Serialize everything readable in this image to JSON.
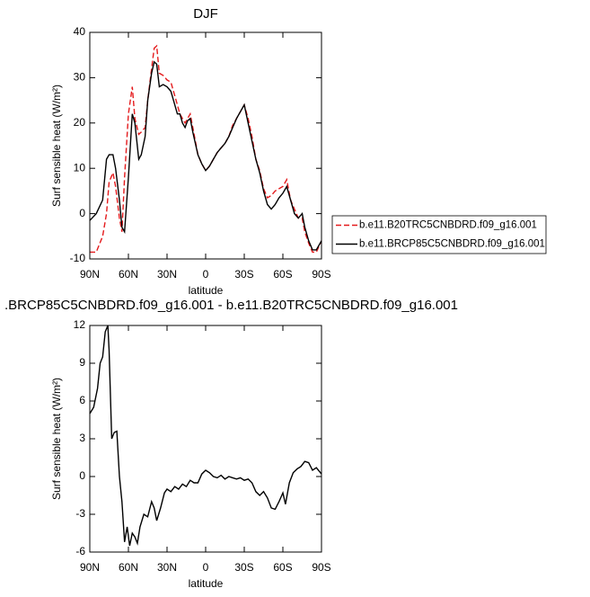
{
  "chart_data": [
    {
      "type": "line",
      "title": "DJF",
      "xlabel": "latitude",
      "ylabel": "Surf sensible heat (W/m²)",
      "x": [
        90,
        85,
        80,
        77,
        75,
        72,
        70,
        67,
        65,
        63,
        60,
        57,
        55,
        52,
        50,
        47,
        45,
        42,
        40,
        38,
        36,
        33,
        30,
        27,
        25,
        22,
        20,
        18,
        16,
        14,
        12,
        10,
        6,
        3,
        0,
        -3,
        -6,
        -9,
        -12,
        -15,
        -18,
        -21,
        -24,
        -27,
        -30,
        -33,
        -36,
        -39,
        -42,
        -45,
        -48,
        -51,
        -54,
        -57,
        -60,
        -63,
        -66,
        -69,
        -72,
        -75,
        -77,
        -80,
        -83,
        -86,
        -90
      ],
      "series": [
        {
          "name": "b.e11.B20TRC5CNBDRD.f09_g16.001",
          "color": "#e41a1c",
          "line_style": "dashed",
          "values": [
            -8.5,
            -8.5,
            -5,
            0,
            7,
            9,
            6,
            -1,
            -4,
            8,
            22,
            28,
            21,
            17.5,
            18,
            19,
            25,
            32,
            36.5,
            37,
            31,
            30.5,
            29.5,
            29,
            27,
            24,
            22,
            21,
            20,
            21,
            22,
            19,
            13,
            11,
            9.5,
            10.5,
            12,
            13.5,
            14.5,
            15.5,
            17,
            19.5,
            21,
            22.5,
            24,
            21,
            17,
            12,
            9.5,
            5.5,
            3.5,
            4,
            5,
            5.5,
            6,
            7.5,
            3,
            1,
            -1,
            -1,
            -4,
            -6.5,
            -8.5,
            -8.5,
            -6
          ]
        },
        {
          "name": "b.e11.BRCP85C5CNBDRD.f09_g16.001",
          "color": "#000000",
          "line_style": "solid",
          "values": [
            -1.5,
            0,
            3,
            12,
            13,
            13,
            10,
            3,
            -3,
            -4,
            8,
            22,
            20,
            12,
            13,
            17,
            25,
            31,
            33.5,
            33,
            28,
            28.5,
            28,
            27,
            25,
            22,
            22,
            20,
            19,
            20.5,
            21,
            18,
            13,
            11,
            9.5,
            10.5,
            12,
            13.5,
            14.5,
            15.5,
            17,
            19,
            21,
            22.5,
            24,
            20,
            16,
            12,
            9,
            5,
            2,
            1,
            2,
            3.5,
            4.5,
            6,
            3,
            0,
            -1,
            0,
            -3,
            -6,
            -8,
            -8,
            -6
          ]
        }
      ],
      "xlim": [
        90,
        -90
      ],
      "xticks": [
        {
          "value": 90,
          "label": "90N"
        },
        {
          "value": 60,
          "label": "60N"
        },
        {
          "value": 30,
          "label": "30N"
        },
        0,
        {
          "value": -30,
          "label": "30S"
        },
        {
          "value": -60,
          "label": "60S"
        },
        {
          "value": -90,
          "label": "90S"
        }
      ],
      "ylim": [
        -10,
        40
      ],
      "yticks": [
        -10,
        0,
        10,
        20,
        30,
        40
      ],
      "legend": "right"
    },
    {
      "type": "line",
      "title": ".BRCP85C5CNBDRD.f09_g16.001 - b.e11.B20TRC5CNBDRD.f09_g16.001",
      "xlabel": "latitude",
      "ylabel": "Surf sensible heat (W/m²)",
      "x": [
        90,
        87,
        84,
        82,
        80,
        78,
        76,
        75,
        73,
        71,
        69,
        67,
        65,
        63,
        61,
        59,
        57,
        55,
        53,
        51,
        48,
        45,
        42,
        40,
        38,
        35,
        32,
        30,
        27,
        24,
        21,
        18,
        15,
        12,
        9,
        6,
        3,
        0,
        -3,
        -6,
        -9,
        -12,
        -15,
        -18,
        -21,
        -24,
        -27,
        -30,
        -33,
        -36,
        -39,
        -42,
        -45,
        -48,
        -51,
        -54,
        -57,
        -60,
        -62,
        -65,
        -68,
        -71,
        -74,
        -77,
        -80,
        -83,
        -86,
        -90
      ],
      "series": [
        {
          "color": "#000000",
          "line_style": "solid",
          "values": [
            5,
            5.5,
            7,
            9,
            9.5,
            11.5,
            12,
            10,
            3,
            3.5,
            3.6,
            0,
            -2,
            -5.2,
            -4,
            -5.5,
            -4.5,
            -4.8,
            -5.3,
            -4,
            -3,
            -3.2,
            -2,
            -2.5,
            -3.5,
            -2.5,
            -1.3,
            -1,
            -1.2,
            -0.8,
            -1,
            -0.6,
            -0.8,
            -0.3,
            -0.5,
            -0.5,
            0.2,
            0.5,
            0.3,
            0,
            -0.1,
            0.1,
            -0.2,
            0,
            -0.1,
            -0.2,
            -0.1,
            -0.3,
            -0.2,
            -0.5,
            -1.2,
            -1.5,
            -1.2,
            -1.7,
            -2.5,
            -2.6,
            -2,
            -1.3,
            -2.2,
            -0.5,
            0.3,
            0.6,
            0.8,
            1.2,
            1.1,
            0.5,
            0.7,
            0.2
          ]
        }
      ],
      "xlim": [
        90,
        -90
      ],
      "xticks": [
        {
          "value": 90,
          "label": "90N"
        },
        {
          "value": 60,
          "label": "60N"
        },
        {
          "value": 30,
          "label": "30N"
        },
        0,
        {
          "value": -30,
          "label": "30S"
        },
        {
          "value": -60,
          "label": "60S"
        },
        {
          "value": -90,
          "label": "90S"
        }
      ],
      "ylim": [
        -6,
        12
      ],
      "yticks": [
        -6,
        -3,
        0,
        3,
        6,
        9,
        12
      ]
    }
  ]
}
